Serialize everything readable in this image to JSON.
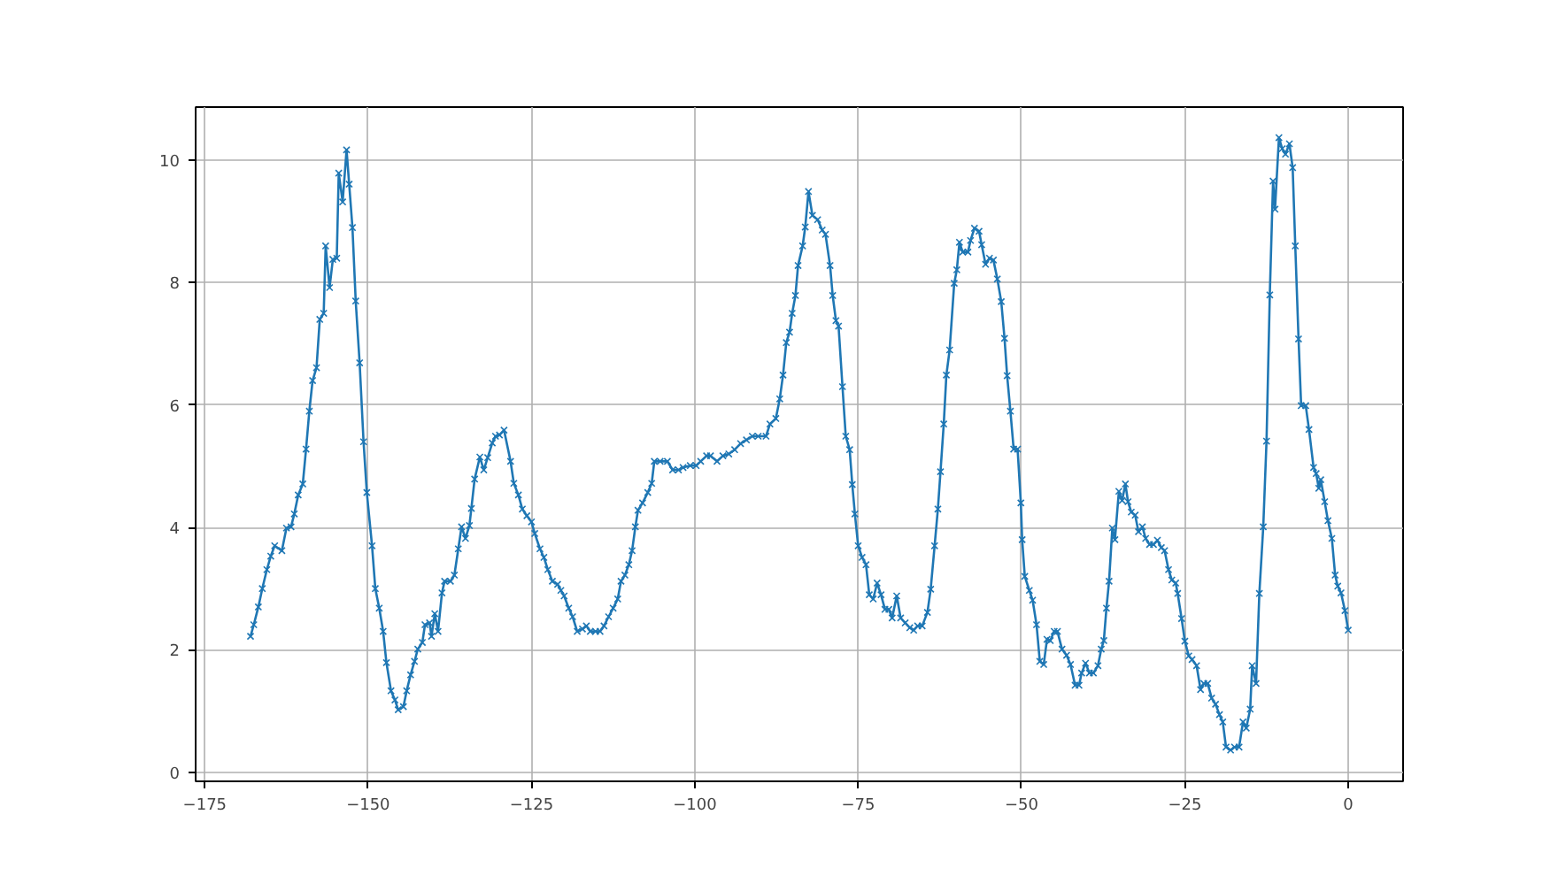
{
  "chart_data": {
    "type": "line",
    "marker": "cross",
    "line_style": "solid",
    "grid": true,
    "xlim": [
      -176.4,
      8.4
    ],
    "ylim": [
      -0.15,
      10.87
    ],
    "xticks": [
      -175,
      -150,
      -125,
      -100,
      -75,
      -50,
      -25,
      0
    ],
    "yticks": [
      0,
      2,
      4,
      6,
      8,
      10
    ],
    "series": [
      {
        "color": "#1f77b4",
        "x": [
          -168.0,
          -167.5,
          -166.8,
          -166.2,
          -165.5,
          -164.9,
          -164.3,
          -163.2,
          -162.5,
          -161.8,
          -161.3,
          -160.7,
          -160.0,
          -159.5,
          -159.0,
          -158.5,
          -157.9,
          -157.4,
          -156.8,
          -156.5,
          -155.9,
          -155.4,
          -154.8,
          -154.5,
          -153.9,
          -153.3,
          -152.9,
          -152.4,
          -151.9,
          -151.3,
          -150.7,
          -150.2,
          -149.4,
          -148.9,
          -148.3,
          -147.7,
          -147.2,
          -146.5,
          -145.9,
          -145.4,
          -144.6,
          -144.1,
          -143.5,
          -142.9,
          -142.4,
          -141.7,
          -141.3,
          -140.6,
          -140.3,
          -139.8,
          -139.3,
          -138.7,
          -138.3,
          -137.4,
          -136.8,
          -136.2,
          -135.7,
          -135.1,
          -134.5,
          -134.2,
          -133.7,
          -132.9,
          -132.3,
          -131.7,
          -131.0,
          -130.5,
          -129.9,
          -129.2,
          -128.2,
          -127.7,
          -127.0,
          -126.4,
          -125.7,
          -125.0,
          -124.5,
          -123.7,
          -123.1,
          -122.5,
          -121.8,
          -121.0,
          -120.5,
          -120.0,
          -119.3,
          -118.7,
          -118.0,
          -117.2,
          -116.6,
          -116.0,
          -115.2,
          -114.5,
          -113.9,
          -113.2,
          -112.5,
          -111.8,
          -111.3,
          -110.7,
          -110.1,
          -109.6,
          -109.1,
          -108.7,
          -108.0,
          -107.2,
          -106.6,
          -106.2,
          -105.3,
          -104.2,
          -103.4,
          -102.5,
          -101.8,
          -100.7,
          -99.8,
          -99.1,
          -98.2,
          -97.6,
          -96.6,
          -95.7,
          -94.8,
          -93.9,
          -93.0,
          -92.1,
          -91.2,
          -90.3,
          -89.1,
          -88.5,
          -87.6,
          -87.0,
          -86.5,
          -86.0,
          -85.5,
          -85.1,
          -84.6,
          -84.2,
          -83.5,
          -83.1,
          -82.6,
          -82.0,
          -81.2,
          -80.5,
          -80.0,
          -79.3,
          -78.9,
          -78.4,
          -78.0,
          -77.4,
          -76.9,
          -76.3,
          -75.9,
          -75.5,
          -75.0,
          -74.4,
          -73.8,
          -73.3,
          -72.7,
          -72.1,
          -71.5,
          -70.9,
          -70.3,
          -69.8,
          -69.1,
          -68.5,
          -67.8,
          -67.1,
          -66.5,
          -65.9,
          -65.2,
          -64.4,
          -63.9,
          -63.3,
          -62.8,
          -62.4,
          -61.9,
          -61.5,
          -61.0,
          -60.3,
          -59.9,
          -59.5,
          -59.0,
          -58.2,
          -57.8,
          -57.2,
          -56.5,
          -56.1,
          -55.5,
          -54.9,
          -54.3,
          -53.7,
          -53.1,
          -52.6,
          -52.2,
          -51.7,
          -51.2,
          -50.6,
          -50.1,
          -49.9,
          -49.5,
          -48.8,
          -48.3,
          -47.7,
          -47.2,
          -46.6,
          -46.1,
          -45.6,
          -45.0,
          -44.5,
          -43.8,
          -43.1,
          -42.5,
          -41.8,
          -41.2,
          -40.8,
          -40.2,
          -39.6,
          -39.0,
          -38.3,
          -37.8,
          -37.4,
          -37.0,
          -36.6,
          -36.1,
          -35.7,
          -35.1,
          -34.6,
          -34.1,
          -33.7,
          -33.2,
          -32.6,
          -32.1,
          -31.5,
          -31.0,
          -30.4,
          -29.8,
          -29.2,
          -28.6,
          -28.1,
          -27.5,
          -27.0,
          -26.4,
          -26.1,
          -25.5,
          -25.0,
          -24.4,
          -23.9,
          -23.2,
          -22.6,
          -22.1,
          -21.5,
          -20.9,
          -20.3,
          -19.7,
          -19.2,
          -18.7,
          -18.0,
          -17.4,
          -16.7,
          -16.1,
          -15.6,
          -15.0,
          -14.7,
          -14.1,
          -13.6,
          -13.0,
          -12.5,
          -12.0,
          -11.5,
          -11.2,
          -10.6,
          -10.1,
          -9.6,
          -9.0,
          -8.5,
          -8.1,
          -7.6,
          -7.2,
          -6.5,
          -6.0,
          -5.3,
          -4.9,
          -4.5,
          -4.2,
          -3.6,
          -3.1,
          -2.5,
          -2.0,
          -1.6,
          -1.1,
          -0.5,
          0.0
        ],
        "values": [
          2.22,
          2.41,
          2.7,
          3.0,
          3.31,
          3.53,
          3.7,
          3.62,
          3.99,
          4.01,
          4.22,
          4.53,
          4.71,
          5.28,
          5.9,
          6.4,
          6.61,
          7.4,
          7.5,
          8.6,
          7.92,
          8.38,
          8.4,
          9.79,
          9.32,
          10.17,
          9.61,
          8.9,
          7.7,
          6.69,
          5.4,
          4.57,
          3.7,
          3.0,
          2.68,
          2.3,
          1.79,
          1.33,
          1.18,
          1.02,
          1.07,
          1.33,
          1.59,
          1.81,
          2.01,
          2.12,
          2.41,
          2.44,
          2.22,
          2.59,
          2.3,
          2.93,
          3.12,
          3.12,
          3.22,
          3.65,
          4.01,
          3.82,
          4.03,
          4.31,
          4.79,
          5.15,
          4.94,
          5.14,
          5.38,
          5.49,
          5.51,
          5.59,
          5.08,
          4.72,
          4.53,
          4.3,
          4.19,
          4.09,
          3.9,
          3.65,
          3.51,
          3.31,
          3.12,
          3.07,
          2.97,
          2.88,
          2.68,
          2.54,
          2.3,
          2.34,
          2.39,
          2.3,
          2.3,
          2.3,
          2.39,
          2.54,
          2.68,
          2.83,
          3.12,
          3.22,
          3.39,
          3.62,
          4.01,
          4.28,
          4.4,
          4.57,
          4.72,
          5.08,
          5.08,
          5.08,
          4.94,
          4.94,
          4.98,
          5.01,
          5.01,
          5.08,
          5.17,
          5.17,
          5.08,
          5.17,
          5.2,
          5.27,
          5.37,
          5.43,
          5.49,
          5.49,
          5.49,
          5.69,
          5.78,
          6.1,
          6.49,
          7.02,
          7.19,
          7.5,
          7.79,
          8.28,
          8.6,
          8.91,
          9.49,
          9.1,
          9.03,
          8.86,
          8.79,
          8.28,
          7.79,
          7.38,
          7.29,
          6.3,
          5.49,
          5.27,
          4.7,
          4.22,
          3.7,
          3.51,
          3.39,
          2.9,
          2.83,
          3.09,
          2.9,
          2.66,
          2.66,
          2.52,
          2.88,
          2.52,
          2.44,
          2.36,
          2.32,
          2.39,
          2.39,
          2.61,
          2.99,
          3.7,
          4.3,
          4.91,
          5.69,
          6.49,
          6.9,
          7.99,
          8.21,
          8.66,
          8.5,
          8.5,
          8.69,
          8.89,
          8.84,
          8.62,
          8.3,
          8.4,
          8.37,
          8.06,
          7.69,
          7.09,
          6.48,
          5.9,
          5.28,
          5.28,
          4.4,
          3.8,
          3.2,
          2.97,
          2.81,
          2.41,
          1.81,
          1.76,
          2.17,
          2.15,
          2.3,
          2.3,
          2.01,
          1.91,
          1.76,
          1.42,
          1.42,
          1.62,
          1.78,
          1.62,
          1.62,
          1.74,
          2.01,
          2.15,
          2.68,
          3.12,
          3.99,
          3.8,
          4.59,
          4.44,
          4.71,
          4.42,
          4.25,
          4.2,
          3.93,
          4.01,
          3.82,
          3.72,
          3.72,
          3.79,
          3.67,
          3.62,
          3.31,
          3.14,
          3.09,
          2.92,
          2.51,
          2.14,
          1.9,
          1.84,
          1.74,
          1.35,
          1.45,
          1.45,
          1.21,
          1.11,
          0.94,
          0.82,
          0.41,
          0.36,
          0.41,
          0.41,
          0.82,
          0.72,
          1.03,
          1.74,
          1.45,
          2.92,
          4.01,
          5.41,
          7.8,
          9.66,
          9.2,
          10.37,
          10.19,
          10.1,
          10.27,
          9.88,
          8.6,
          7.08,
          5.99,
          5.99,
          5.6,
          4.98,
          4.88,
          4.64,
          4.78,
          4.42,
          4.11,
          3.82,
          3.22,
          3.04,
          2.93,
          2.64,
          2.32
        ]
      }
    ]
  }
}
